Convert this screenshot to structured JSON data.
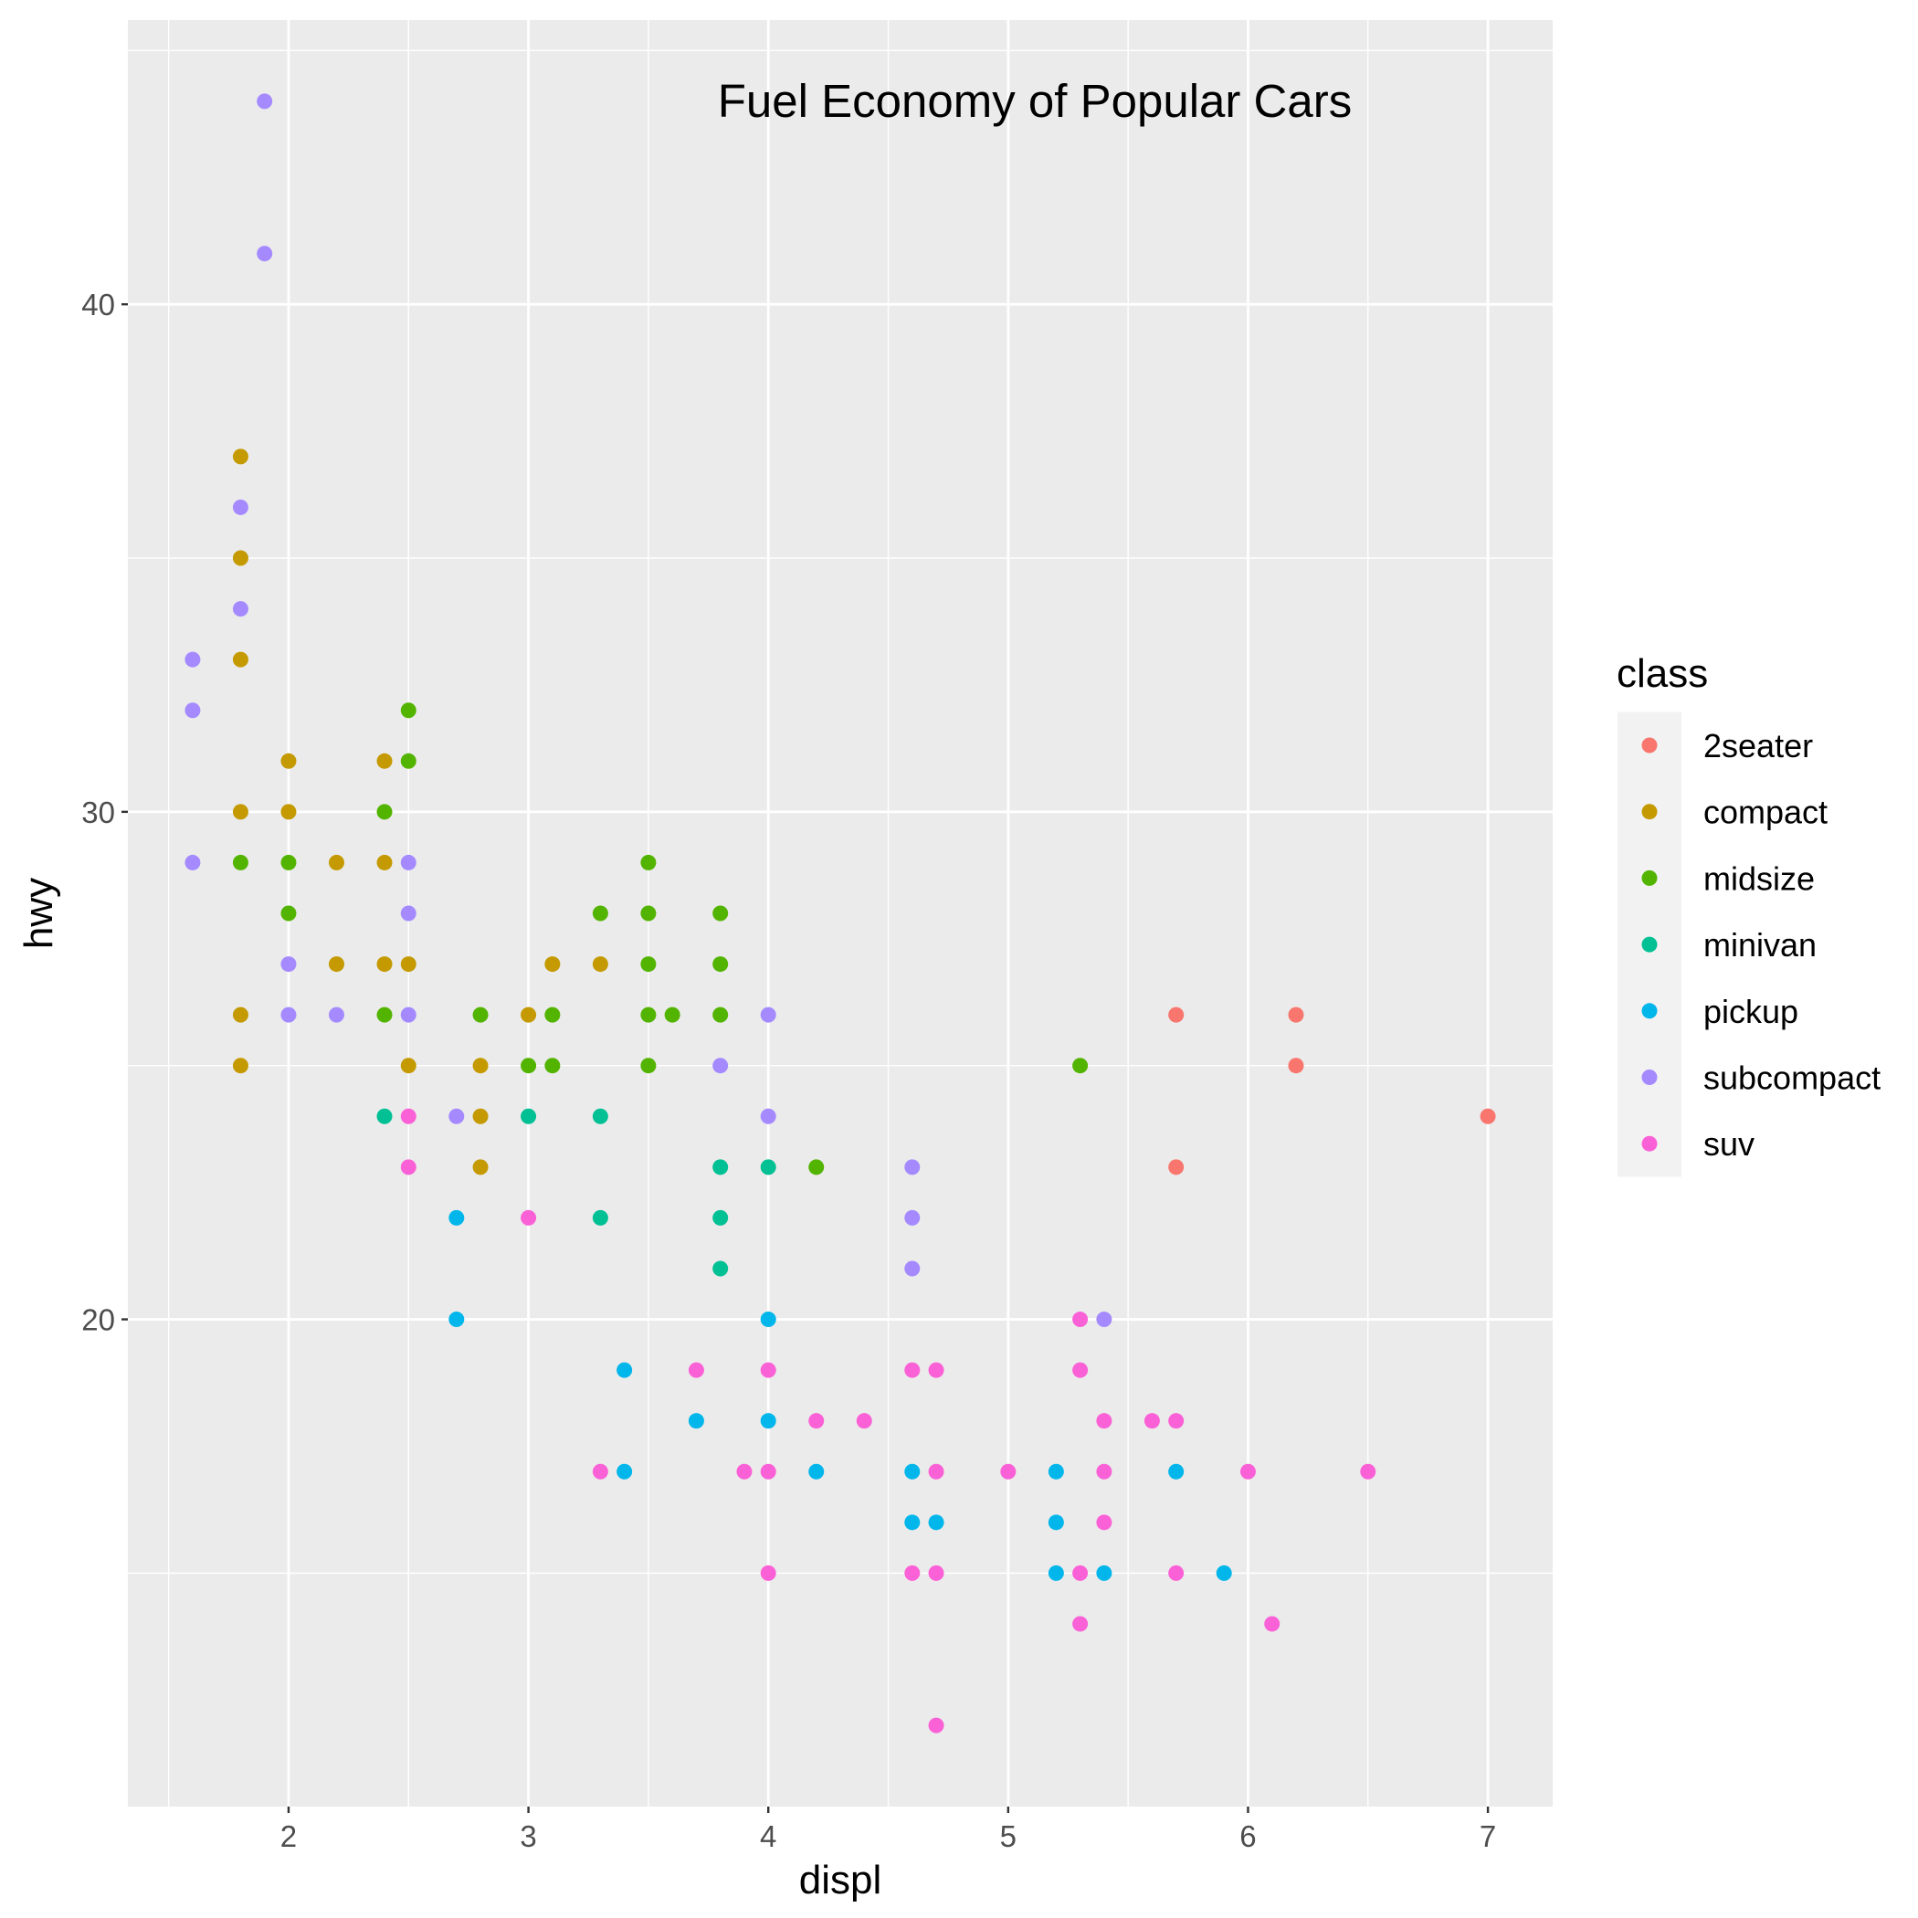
{
  "chart_data": {
    "type": "scatter",
    "title": "Fuel Economy of Popular Cars",
    "xlabel": "displ",
    "ylabel": "hwy",
    "xlim": [
      1.33,
      7.27
    ],
    "ylim": [
      10.4,
      45.6
    ],
    "xticks": [
      2,
      3,
      4,
      5,
      6,
      7
    ],
    "yticks": [
      20,
      30,
      40
    ],
    "grid": true,
    "legend": {
      "title": "class",
      "position": "right"
    },
    "series": [
      {
        "name": "2seater",
        "color": "#F8766D",
        "points": [
          [
            5.7,
            26
          ],
          [
            5.7,
            23
          ],
          [
            6.2,
            26
          ],
          [
            6.2,
            25
          ],
          [
            7.0,
            24
          ]
        ]
      },
      {
        "name": "compact",
        "color": "#C49A00",
        "points": [
          [
            1.8,
            37
          ],
          [
            1.8,
            35
          ],
          [
            1.8,
            33
          ],
          [
            1.8,
            30
          ],
          [
            1.8,
            26
          ],
          [
            1.8,
            25
          ],
          [
            2.0,
            31
          ],
          [
            2.0,
            30
          ],
          [
            2.2,
            29
          ],
          [
            2.2,
            27
          ],
          [
            2.4,
            31
          ],
          [
            2.4,
            29
          ],
          [
            2.4,
            27
          ],
          [
            2.5,
            27
          ],
          [
            2.5,
            25
          ],
          [
            2.8,
            25
          ],
          [
            2.8,
            24
          ],
          [
            2.8,
            23
          ],
          [
            3.0,
            26
          ],
          [
            3.1,
            27
          ],
          [
            3.3,
            27
          ]
        ]
      },
      {
        "name": "midsize",
        "color": "#53B400",
        "points": [
          [
            1.8,
            29
          ],
          [
            2.0,
            29
          ],
          [
            2.0,
            28
          ],
          [
            2.4,
            30
          ],
          [
            2.4,
            26
          ],
          [
            2.5,
            32
          ],
          [
            2.5,
            31
          ],
          [
            2.8,
            26
          ],
          [
            3.0,
            25
          ],
          [
            3.1,
            26
          ],
          [
            3.1,
            25
          ],
          [
            3.3,
            28
          ],
          [
            3.5,
            29
          ],
          [
            3.5,
            28
          ],
          [
            3.5,
            27
          ],
          [
            3.5,
            26
          ],
          [
            3.5,
            25
          ],
          [
            3.6,
            26
          ],
          [
            3.8,
            28
          ],
          [
            3.8,
            27
          ],
          [
            3.8,
            26
          ],
          [
            4.2,
            23
          ],
          [
            5.3,
            25
          ]
        ]
      },
      {
        "name": "minivan",
        "color": "#00C094",
        "points": [
          [
            2.4,
            24
          ],
          [
            3.0,
            24
          ],
          [
            3.3,
            24
          ],
          [
            3.3,
            22
          ],
          [
            3.8,
            23
          ],
          [
            3.8,
            22
          ],
          [
            3.8,
            21
          ],
          [
            4.0,
            23
          ]
        ]
      },
      {
        "name": "pickup",
        "color": "#00B6EB",
        "points": [
          [
            2.7,
            22
          ],
          [
            2.7,
            20
          ],
          [
            3.4,
            19
          ],
          [
            3.4,
            17
          ],
          [
            3.7,
            18
          ],
          [
            4.0,
            20
          ],
          [
            4.0,
            18
          ],
          [
            4.2,
            17
          ],
          [
            4.6,
            17
          ],
          [
            4.6,
            16
          ],
          [
            4.7,
            16
          ],
          [
            5.2,
            17
          ],
          [
            5.2,
            16
          ],
          [
            5.2,
            15
          ],
          [
            5.4,
            15
          ],
          [
            5.7,
            17
          ],
          [
            5.9,
            15
          ]
        ]
      },
      {
        "name": "subcompact",
        "color": "#A58AFF",
        "points": [
          [
            1.6,
            33
          ],
          [
            1.6,
            32
          ],
          [
            1.6,
            29
          ],
          [
            1.8,
            36
          ],
          [
            1.8,
            34
          ],
          [
            1.9,
            44
          ],
          [
            1.9,
            41
          ],
          [
            2.0,
            27
          ],
          [
            2.0,
            26
          ],
          [
            2.2,
            26
          ],
          [
            2.5,
            29
          ],
          [
            2.5,
            28
          ],
          [
            2.5,
            26
          ],
          [
            2.7,
            24
          ],
          [
            3.8,
            25
          ],
          [
            4.0,
            26
          ],
          [
            4.0,
            24
          ],
          [
            4.6,
            23
          ],
          [
            4.6,
            22
          ],
          [
            4.6,
            21
          ],
          [
            5.4,
            20
          ]
        ]
      },
      {
        "name": "suv",
        "color": "#FB61D7",
        "points": [
          [
            2.5,
            24
          ],
          [
            2.5,
            23
          ],
          [
            3.0,
            22
          ],
          [
            3.3,
            17
          ],
          [
            3.7,
            19
          ],
          [
            3.9,
            17
          ],
          [
            4.0,
            19
          ],
          [
            4.0,
            17
          ],
          [
            4.0,
            15
          ],
          [
            4.2,
            18
          ],
          [
            4.4,
            18
          ],
          [
            4.6,
            19
          ],
          [
            4.6,
            15
          ],
          [
            4.7,
            19
          ],
          [
            4.7,
            17
          ],
          [
            4.7,
            15
          ],
          [
            4.7,
            12
          ],
          [
            5.0,
            17
          ],
          [
            5.3,
            20
          ],
          [
            5.3,
            19
          ],
          [
            5.3,
            15
          ],
          [
            5.3,
            14
          ],
          [
            5.4,
            18
          ],
          [
            5.4,
            17
          ],
          [
            5.4,
            16
          ],
          [
            5.6,
            18
          ],
          [
            5.7,
            18
          ],
          [
            5.7,
            15
          ],
          [
            6.0,
            17
          ],
          [
            6.1,
            14
          ],
          [
            6.5,
            17
          ]
        ]
      }
    ]
  }
}
